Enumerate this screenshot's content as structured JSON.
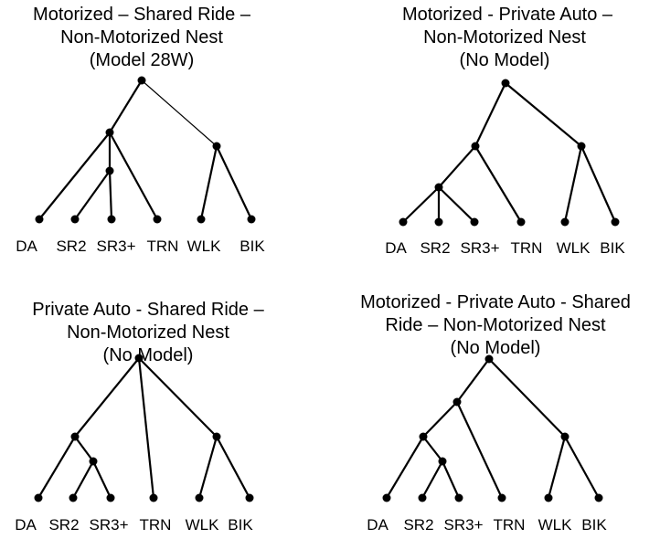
{
  "diagrams": [
    {
      "id": "d1",
      "title": [
        "Motorized – Shared Ride –",
        "Non-Motorized Nest",
        "(Model 28W)"
      ],
      "leaves": [
        "DA",
        "SR2",
        "SR3+",
        "TRN",
        "WLK",
        "BIK"
      ]
    },
    {
      "id": "d2",
      "title": [
        "Motorized - Private Auto –",
        "Non-Motorized Nest",
        "(No Model)"
      ],
      "leaves": [
        "DA",
        "SR2",
        "SR3+",
        "TRN",
        "WLK",
        "BIK"
      ]
    },
    {
      "id": "d3",
      "title": [
        "Private Auto - Shared Ride –",
        "Non-Motorized Nest",
        "(No Model)"
      ],
      "leaves": [
        "DA",
        "SR2",
        "SR3+",
        "TRN",
        "WLK",
        "BIK"
      ]
    },
    {
      "id": "d4",
      "title": [
        "Motorized - Private Auto - Shared",
        "Ride – Non-Motorized Nest",
        "(No Model)"
      ],
      "leaves": [
        "DA",
        "SR2",
        "SR3+",
        "TRN",
        "WLK",
        "BIK"
      ]
    }
  ]
}
